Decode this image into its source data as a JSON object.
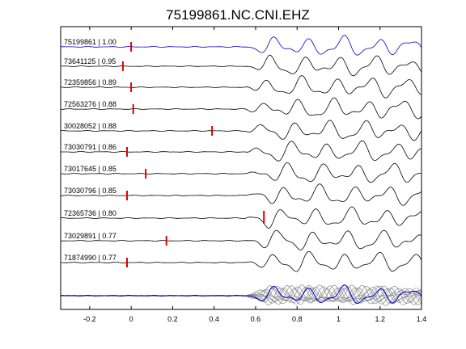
{
  "chart_data": {
    "type": "line",
    "title": "75199861.NC.CNI.EHZ",
    "xlabel": "",
    "ylabel": "",
    "xlim": [
      -0.34,
      1.4
    ],
    "xticks": [
      -0.2,
      0,
      0.2,
      0.4,
      0.6,
      0.8,
      1,
      1.2,
      1.4
    ],
    "xtick_labels": [
      "-0.2",
      "0",
      "0.2",
      "0.4",
      "0.6",
      "0.8",
      "1",
      "1.2",
      "1.4"
    ],
    "grid": false,
    "traces": [
      {
        "label": "75199861 | 1.00",
        "event_id": "75199861",
        "correlation": 1.0,
        "pick_time": 0.0,
        "color": "#0000cc"
      },
      {
        "label": "73641125 | 0.95",
        "event_id": "73641125",
        "correlation": 0.95,
        "pick_time": -0.04,
        "color": "#000000"
      },
      {
        "label": "72359856 | 0.89",
        "event_id": "72359856",
        "correlation": 0.89,
        "pick_time": 0.0,
        "color": "#000000"
      },
      {
        "label": "72563276 | 0.88",
        "event_id": "72563276",
        "correlation": 0.88,
        "pick_time": 0.01,
        "color": "#000000"
      },
      {
        "label": "30028052 | 0.88",
        "event_id": "30028052",
        "correlation": 0.88,
        "pick_time": 0.39,
        "color": "#000000"
      },
      {
        "label": "73030791 | 0.86",
        "event_id": "73030791",
        "correlation": 0.86,
        "pick_time": -0.02,
        "color": "#000000"
      },
      {
        "label": "73017645 | 0.85",
        "event_id": "73017645",
        "correlation": 0.85,
        "pick_time": 0.07,
        "color": "#000000"
      },
      {
        "label": "73030796 | 0.85",
        "event_id": "73030796",
        "correlation": 0.85,
        "pick_time": -0.02,
        "color": "#000000"
      },
      {
        "label": "72365736 | 0.80",
        "event_id": "72365736",
        "correlation": 0.8,
        "pick_time": 0.64,
        "color": "#000000"
      },
      {
        "label": "73029891 | 0.77",
        "event_id": "73029891",
        "correlation": 0.77,
        "pick_time": 0.17,
        "color": "#000000"
      },
      {
        "label": "71874990 | 0.77",
        "event_id": "71874990",
        "correlation": 0.77,
        "pick_time": -0.02,
        "color": "#000000"
      }
    ],
    "stack": {
      "overlay_color": "#888888",
      "reference_color": "#0000cc"
    },
    "pick_color": "#dd0000"
  }
}
